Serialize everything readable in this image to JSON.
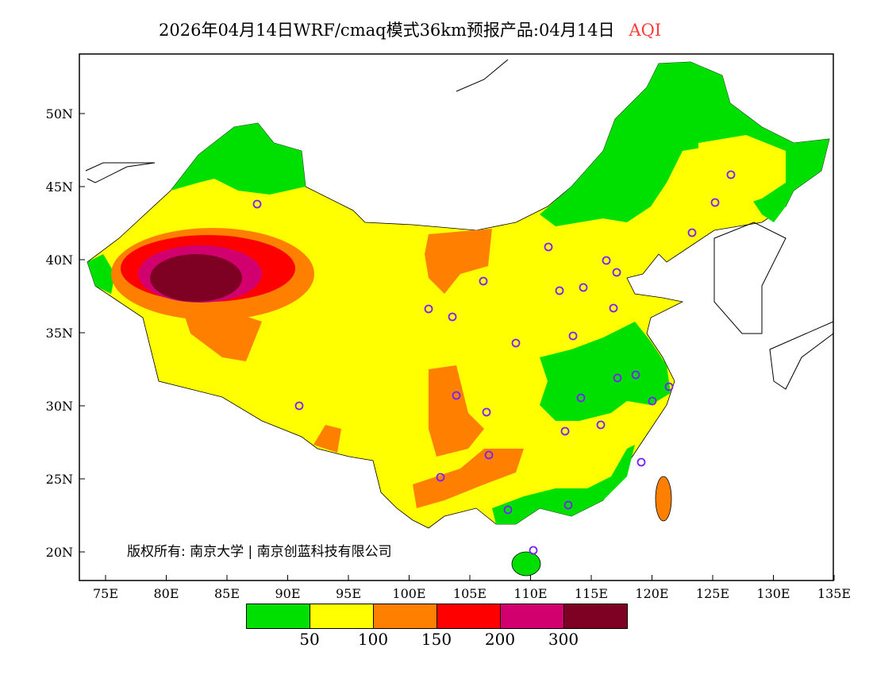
{
  "title": {
    "text": "2026年04月14日WRF/cmaq模式36km预报产品:04月14日",
    "variable": "AQI",
    "variable_color": "#ff3b3b"
  },
  "axes": {
    "lon_ticks": [
      "75E",
      "80E",
      "85E",
      "90E",
      "95E",
      "100E",
      "105E",
      "110E",
      "115E",
      "120E",
      "125E",
      "130E",
      "135E"
    ],
    "lat_ticks": [
      "50N",
      "45N",
      "40N",
      "35N",
      "30N",
      "25N",
      "20N"
    ]
  },
  "legend": {
    "colors": [
      "#00e000",
      "#ffff00",
      "#ff8000",
      "#ff0000",
      "#d2006f",
      "#7e0023"
    ],
    "labels": [
      "50",
      "100",
      "150",
      "200",
      "300"
    ]
  },
  "copyright": "版权所有: 南京大学 | 南京创蓝科技有限公司"
}
